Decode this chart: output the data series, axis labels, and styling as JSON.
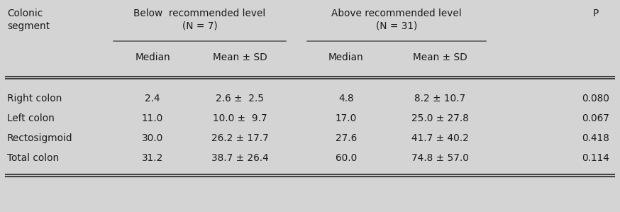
{
  "bg_color": "#d4d4d4",
  "rows": [
    [
      "Right colon",
      "2.4",
      "2.6 ±  2.5",
      "4.8",
      "8.2 ± 10.7",
      "0.080"
    ],
    [
      "Left colon",
      "11.0",
      "10.0 ±  9.7",
      "17.0",
      "25.0 ± 27.8",
      "0.067"
    ],
    [
      "Rectosigmoid",
      "30.0",
      "26.2 ± 17.7",
      "27.6",
      "41.7 ± 40.2",
      "0.418"
    ],
    [
      "Total colon",
      "31.2",
      "38.7 ± 26.4",
      "60.0",
      "74.8 ± 57.0",
      "0.114"
    ]
  ],
  "font_size": 9.8,
  "text_color": "#1a1a1a",
  "line_color": "#555555",
  "thick_line_color": "#444444"
}
